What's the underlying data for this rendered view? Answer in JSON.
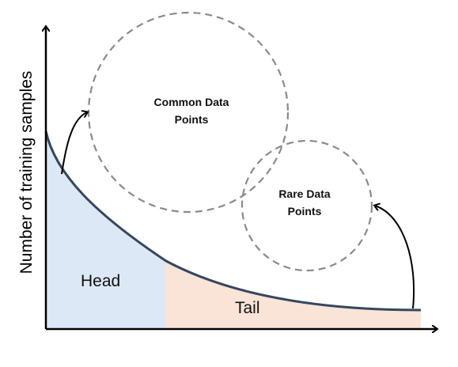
{
  "diagram": {
    "ylabel": "Number of training samples",
    "head_label": "Head",
    "tail_label": "Tail",
    "common_points_label": "Common Data\nPoints",
    "rare_points_label": "Rare Data\nPoints"
  },
  "colors": {
    "curve": "#34475f",
    "head_fill": "#dce8f5",
    "tail_fill": "#fae3d7",
    "axis": "#000000",
    "dashed_circle": "#8a8a8a",
    "arrow": "#000000"
  }
}
